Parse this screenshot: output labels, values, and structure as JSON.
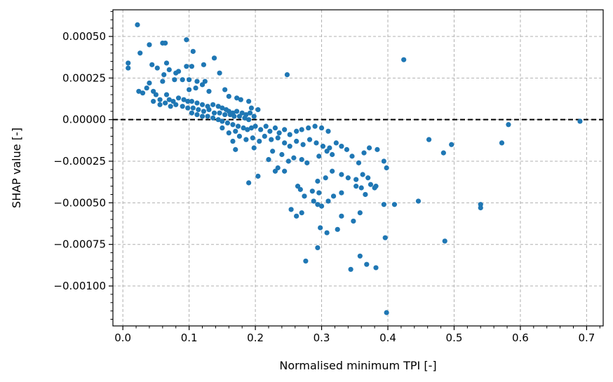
{
  "chart_data": {
    "type": "scatter",
    "title": "",
    "xlabel": "Normalised minimum TPI [-]",
    "ylabel": "SHAP value [-]",
    "xlim": [
      -0.015,
      0.725
    ],
    "ylim": [
      -0.00124,
      0.00066
    ],
    "xticks": [
      0.0,
      0.1,
      0.2,
      0.3,
      0.4,
      0.5,
      0.6,
      0.7
    ],
    "xtick_labels": [
      "0.0",
      "0.1",
      "0.2",
      "0.3",
      "0.4",
      "0.5",
      "0.6",
      "0.7"
    ],
    "yticks": [
      0.0005,
      0.00025,
      0.0,
      -0.00025,
      -0.0005,
      -0.00075,
      -0.001
    ],
    "ytick_labels": [
      "0.00050",
      "0.00025",
      "0.00000",
      "−0.00025",
      "−0.00050",
      "−0.00075",
      "−0.00100"
    ],
    "grid": true,
    "reference_line": {
      "y": 0.0,
      "style": "dashed",
      "color": "#000000"
    },
    "marker_color": "#1f77b4",
    "series": [
      {
        "points": [
          [
            0.022,
            0.00057
          ],
          [
            0.026,
            0.0004
          ],
          [
            0.04,
            0.00045
          ],
          [
            0.06,
            0.00046
          ],
          [
            0.064,
            0.00046
          ],
          [
            0.096,
            0.00048
          ],
          [
            0.106,
            0.00041
          ],
          [
            0.008,
            0.00034
          ],
          [
            0.008,
            0.00031
          ],
          [
            0.044,
            0.00033
          ],
          [
            0.052,
            0.00031
          ],
          [
            0.066,
            0.00034
          ],
          [
            0.07,
            0.0003
          ],
          [
            0.08,
            0.00028
          ],
          [
            0.084,
            0.00029
          ],
          [
            0.096,
            0.00032
          ],
          [
            0.104,
            0.00032
          ],
          [
            0.122,
            0.00033
          ],
          [
            0.138,
            0.00037
          ],
          [
            0.062,
            0.00027
          ],
          [
            0.078,
            0.00024
          ],
          [
            0.09,
            0.00024
          ],
          [
            0.1,
            0.00024
          ],
          [
            0.112,
            0.00023
          ],
          [
            0.124,
            0.00023
          ],
          [
            0.146,
            0.00028
          ],
          [
            0.12,
            0.00021
          ],
          [
            0.06,
            0.00023
          ],
          [
            0.04,
            0.00022
          ],
          [
            0.11,
            0.00019
          ],
          [
            0.1,
            0.00018
          ],
          [
            0.13,
            0.00017
          ],
          [
            0.154,
            0.00018
          ],
          [
            0.16,
            0.00014
          ],
          [
            0.172,
            0.00013
          ],
          [
            0.178,
            0.00012
          ],
          [
            0.19,
            0.00011
          ],
          [
            0.194,
            7e-05
          ],
          [
            0.204,
            6e-05
          ],
          [
            0.024,
            0.00017
          ],
          [
            0.03,
            0.00016
          ],
          [
            0.036,
            0.00019
          ],
          [
            0.046,
            0.00017
          ],
          [
            0.05,
            0.00015
          ],
          [
            0.056,
            0.00012
          ],
          [
            0.066,
            0.00015
          ],
          [
            0.07,
            0.00012
          ],
          [
            0.076,
            0.00011
          ],
          [
            0.084,
            0.00013
          ],
          [
            0.092,
            0.00012
          ],
          [
            0.098,
            0.00011
          ],
          [
            0.104,
            0.00011
          ],
          [
            0.112,
            0.0001
          ],
          [
            0.12,
            9e-05
          ],
          [
            0.128,
            8e-05
          ],
          [
            0.136,
            9e-05
          ],
          [
            0.144,
            8e-05
          ],
          [
            0.15,
            7e-05
          ],
          [
            0.156,
            6e-05
          ],
          [
            0.16,
            5e-05
          ],
          [
            0.166,
            4e-05
          ],
          [
            0.172,
            5e-05
          ],
          [
            0.18,
            4e-05
          ],
          [
            0.186,
            3e-05
          ],
          [
            0.192,
            4e-05
          ],
          [
            0.198,
            2e-05
          ],
          [
            0.046,
            0.00011
          ],
          [
            0.056,
            9e-05
          ],
          [
            0.064,
            0.0001
          ],
          [
            0.072,
            8e-05
          ],
          [
            0.08,
            9e-05
          ],
          [
            0.09,
            8e-05
          ],
          [
            0.098,
            7e-05
          ],
          [
            0.106,
            7e-05
          ],
          [
            0.114,
            6e-05
          ],
          [
            0.122,
            5e-05
          ],
          [
            0.13,
            6e-05
          ],
          [
            0.138,
            4e-05
          ],
          [
            0.146,
            4e-05
          ],
          [
            0.154,
            3e-05
          ],
          [
            0.162,
            3e-05
          ],
          [
            0.168,
            2e-05
          ],
          [
            0.176,
            2e-05
          ],
          [
            0.184,
            1e-05
          ],
          [
            0.19,
            0.0
          ],
          [
            0.104,
            4e-05
          ],
          [
            0.112,
            3e-05
          ],
          [
            0.12,
            2e-05
          ],
          [
            0.128,
            2e-05
          ],
          [
            0.136,
            1e-05
          ],
          [
            0.144,
            0.0
          ],
          [
            0.15,
            -1e-05
          ],
          [
            0.158,
            -2e-05
          ],
          [
            0.166,
            -3e-05
          ],
          [
            0.174,
            -4e-05
          ],
          [
            0.182,
            -5e-05
          ],
          [
            0.188,
            -6e-05
          ],
          [
            0.194,
            -5e-05
          ],
          [
            0.2,
            -4e-05
          ],
          [
            0.208,
            -6e-05
          ],
          [
            0.216,
            -4e-05
          ],
          [
            0.222,
            -7e-05
          ],
          [
            0.23,
            -5e-05
          ],
          [
            0.236,
            -8e-05
          ],
          [
            0.244,
            -6e-05
          ],
          [
            0.252,
            -9e-05
          ],
          [
            0.262,
            -7e-05
          ],
          [
            0.27,
            -6e-05
          ],
          [
            0.28,
            -5e-05
          ],
          [
            0.29,
            -4e-05
          ],
          [
            0.3,
            -5e-05
          ],
          [
            0.31,
            -7e-05
          ],
          [
            0.15,
            -5e-05
          ],
          [
            0.16,
            -8e-05
          ],
          [
            0.17,
            -7e-05
          ],
          [
            0.176,
            -0.0001
          ],
          [
            0.186,
            -0.00012
          ],
          [
            0.196,
            -0.00011
          ],
          [
            0.206,
            -0.00013
          ],
          [
            0.214,
            -0.0001
          ],
          [
            0.224,
            -0.00012
          ],
          [
            0.234,
            -0.00011
          ],
          [
            0.244,
            -0.00014
          ],
          [
            0.252,
            -0.00016
          ],
          [
            0.262,
            -0.00013
          ],
          [
            0.272,
            -0.00015
          ],
          [
            0.282,
            -0.00012
          ],
          [
            0.292,
            -0.00014
          ],
          [
            0.302,
            -0.00016
          ],
          [
            0.312,
            -0.00017
          ],
          [
            0.322,
            -0.00014
          ],
          [
            0.33,
            -0.00016
          ],
          [
            0.166,
            -0.00013
          ],
          [
            0.17,
            -0.00018
          ],
          [
            0.198,
            -0.00017
          ],
          [
            0.226,
            -0.00019
          ],
          [
            0.24,
            -0.00021
          ],
          [
            0.22,
            -0.00024
          ],
          [
            0.234,
            -0.00029
          ],
          [
            0.25,
            -0.00025
          ],
          [
            0.258,
            -0.00023
          ],
          [
            0.27,
            -0.00024
          ],
          [
            0.278,
            -0.00026
          ],
          [
            0.296,
            -0.00022
          ],
          [
            0.308,
            -0.00019
          ],
          [
            0.316,
            -0.00021
          ],
          [
            0.338,
            -0.00018
          ],
          [
            0.346,
            -0.00022
          ],
          [
            0.356,
            -0.00026
          ],
          [
            0.364,
            -0.0002
          ],
          [
            0.372,
            -0.00017
          ],
          [
            0.384,
            -0.00018
          ],
          [
            0.394,
            -0.00025
          ],
          [
            0.398,
            -0.00029
          ],
          [
            0.23,
            -0.00031
          ],
          [
            0.244,
            -0.00031
          ],
          [
            0.204,
            -0.00034
          ],
          [
            0.19,
            -0.00038
          ],
          [
            0.264,
            -0.0004
          ],
          [
            0.268,
            -0.00042
          ],
          [
            0.274,
            -0.00046
          ],
          [
            0.286,
            -0.00043
          ],
          [
            0.294,
            -0.00037
          ],
          [
            0.306,
            -0.00035
          ],
          [
            0.316,
            -0.00031
          ],
          [
            0.33,
            -0.00033
          ],
          [
            0.34,
            -0.00035
          ],
          [
            0.352,
            -0.00036
          ],
          [
            0.362,
            -0.00033
          ],
          [
            0.37,
            -0.00035
          ],
          [
            0.374,
            -0.00039
          ],
          [
            0.382,
            -0.0004
          ],
          [
            0.296,
            -0.00044
          ],
          [
            0.318,
            -0.00046
          ],
          [
            0.33,
            -0.00044
          ],
          [
            0.352,
            -0.0004
          ],
          [
            0.36,
            -0.00041
          ],
          [
            0.38,
            -0.00041
          ],
          [
            0.254,
            -0.00054
          ],
          [
            0.262,
            -0.00058
          ],
          [
            0.27,
            -0.00056
          ],
          [
            0.288,
            -0.00049
          ],
          [
            0.294,
            -0.00051
          ],
          [
            0.3,
            -0.00052
          ],
          [
            0.31,
            -0.00049
          ],
          [
            0.33,
            -0.00058
          ],
          [
            0.358,
            -0.00056
          ],
          [
            0.366,
            -0.00045
          ],
          [
            0.394,
            -0.00051
          ],
          [
            0.298,
            -0.00065
          ],
          [
            0.308,
            -0.00068
          ],
          [
            0.324,
            -0.00066
          ],
          [
            0.348,
            -0.00061
          ],
          [
            0.294,
            -0.00077
          ],
          [
            0.276,
            -0.00085
          ],
          [
            0.358,
            -0.00082
          ],
          [
            0.368,
            -0.00087
          ],
          [
            0.344,
            -0.0009
          ],
          [
            0.382,
            -0.00089
          ],
          [
            0.396,
            -0.00071
          ],
          [
            0.398,
            -0.00116
          ],
          [
            0.41,
            -0.00051
          ],
          [
            0.446,
            -0.00049
          ],
          [
            0.462,
            -0.00012
          ],
          [
            0.484,
            -0.0002
          ],
          [
            0.496,
            -0.00015
          ],
          [
            0.486,
            -0.00073
          ],
          [
            0.54,
            -0.00051
          ],
          [
            0.54,
            -0.00053
          ],
          [
            0.572,
            -0.00014
          ],
          [
            0.582,
            -3e-05
          ],
          [
            0.69,
            -1e-05
          ],
          [
            0.424,
            0.00036
          ],
          [
            0.248,
            0.00027
          ]
        ]
      }
    ]
  }
}
